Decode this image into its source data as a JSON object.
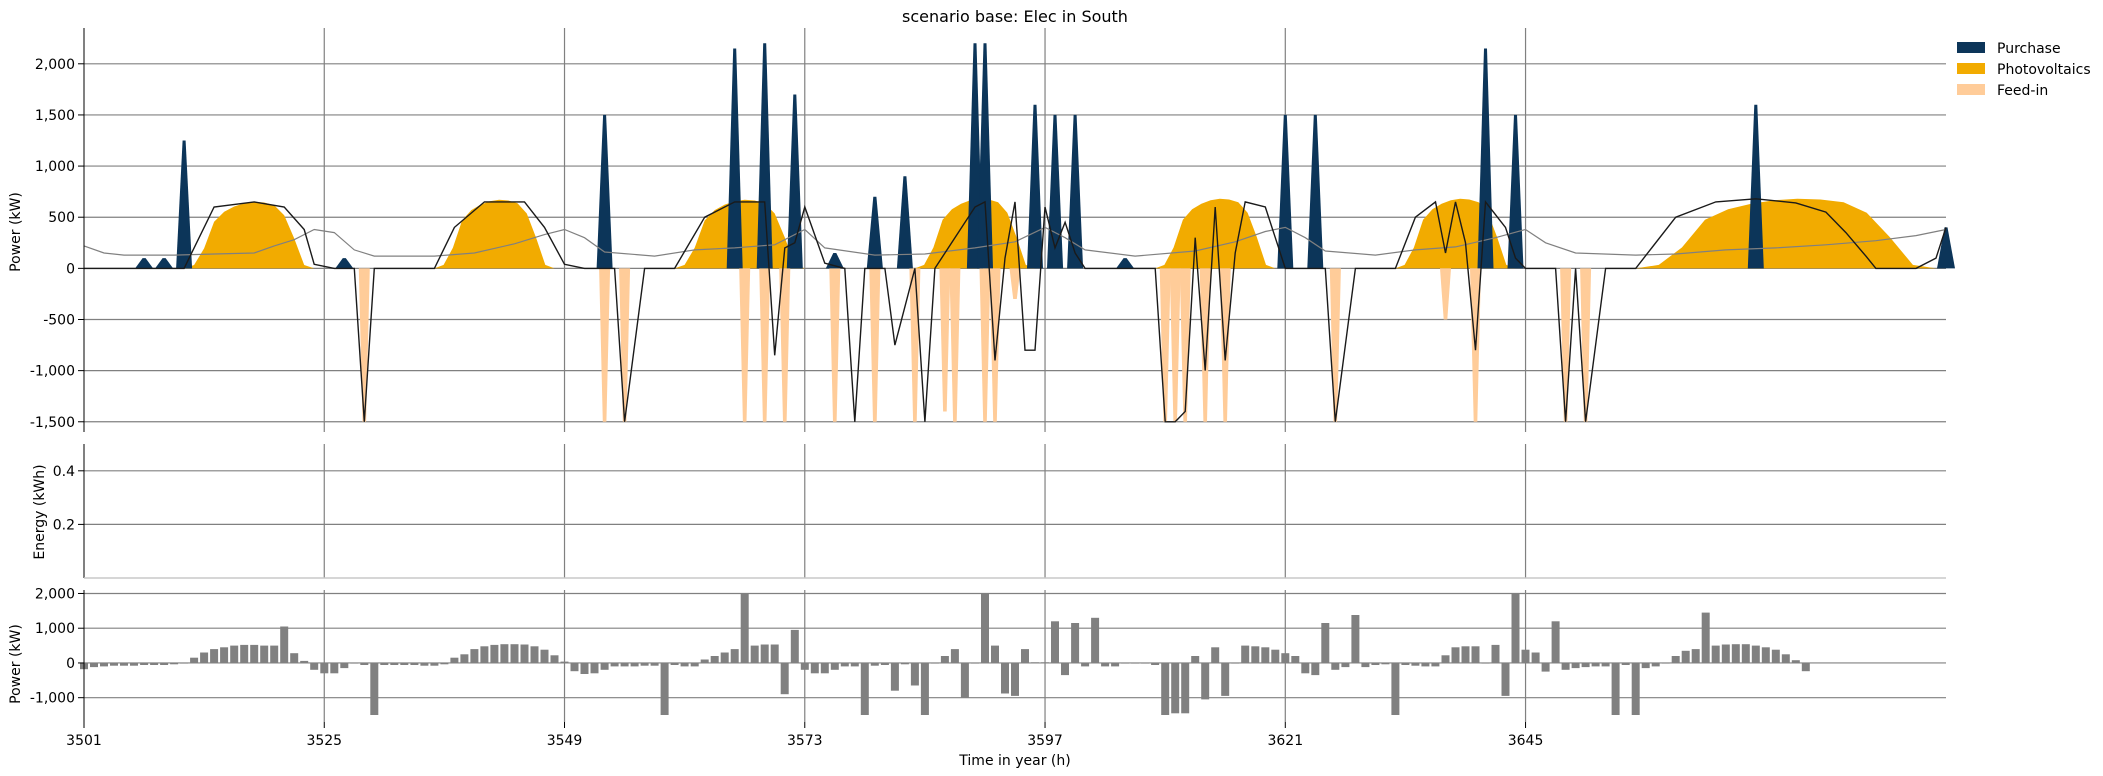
{
  "chart_data": [
    {
      "type": "area",
      "title": "scenario base: Elec in South",
      "xlabel": "",
      "ylabel": "Power (kW)",
      "ylim": [
        -1600,
        2350
      ],
      "xlim": [
        3501,
        3687
      ],
      "x_ticks": [
        3501,
        3525,
        3549,
        3573,
        3597,
        3621,
        3645
      ],
      "y_ticks": [
        -1500,
        -1000,
        -500,
        0,
        500,
        1000,
        1500,
        2000
      ],
      "y_tick_labels": [
        "-1,500",
        "-1,000",
        "-500",
        "0",
        "500",
        "1,000",
        "1,500",
        "2,000"
      ],
      "grid": true,
      "legend_position": "top-right",
      "legend": [
        {
          "name": "Purchase",
          "color": "#0c3559"
        },
        {
          "name": "Photovoltaics",
          "color": "#f2ab00"
        },
        {
          "name": "Feed-in",
          "color": "#ffcc99"
        }
      ],
      "pv_days": [
        {
          "start": 3511,
          "end": 3524,
          "peak": 650
        },
        {
          "start": 3536,
          "end": 3548,
          "peak": 670
        },
        {
          "start": 3560,
          "end": 3573,
          "peak": 670
        },
        {
          "start": 3584,
          "end": 3596,
          "peak": 680
        },
        {
          "start": 3608,
          "end": 3620,
          "peak": 680
        },
        {
          "start": 3632,
          "end": 3644,
          "peak": 680
        },
        {
          "start": 3656,
          "end": 3686,
          "peak": 680
        }
      ],
      "pv_profile": [
        0,
        0.05,
        0.3,
        0.7,
        0.85,
        0.93,
        0.98,
        1,
        0.99,
        0.95,
        0.8,
        0.45,
        0.05,
        0
      ],
      "purchase_spikes": [
        {
          "x": 3511,
          "y": 1250
        },
        {
          "x": 3553,
          "y": 1500
        },
        {
          "x": 3566,
          "y": 2150
        },
        {
          "x": 3569,
          "y": 2200
        },
        {
          "x": 3572,
          "y": 1700
        },
        {
          "x": 3580,
          "y": 700
        },
        {
          "x": 3583,
          "y": 900
        },
        {
          "x": 3590,
          "y": 2200
        },
        {
          "x": 3591,
          "y": 2200
        },
        {
          "x": 3596,
          "y": 1600
        },
        {
          "x": 3598,
          "y": 1500
        },
        {
          "x": 3600,
          "y": 1500
        },
        {
          "x": 3621,
          "y": 1500
        },
        {
          "x": 3624,
          "y": 1500
        },
        {
          "x": 3641,
          "y": 2150
        },
        {
          "x": 3644,
          "y": 1500
        },
        {
          "x": 3668,
          "y": 1600
        }
      ],
      "small_purchase": [
        {
          "x": 3507,
          "y": 100
        },
        {
          "x": 3509,
          "y": 100
        },
        {
          "x": 3527,
          "y": 100
        },
        {
          "x": 3576,
          "y": 150
        },
        {
          "x": 3605,
          "y": 100
        },
        {
          "x": 3687,
          "y": 400
        }
      ],
      "feedin_spikes": [
        {
          "x": 3529,
          "y": -1500
        },
        {
          "x": 3553,
          "y": -1500
        },
        {
          "x": 3555,
          "y": -1500
        },
        {
          "x": 3567,
          "y": -1500
        },
        {
          "x": 3569,
          "y": -1500
        },
        {
          "x": 3571,
          "y": -1500
        },
        {
          "x": 3576,
          "y": -1500
        },
        {
          "x": 3580,
          "y": -1500
        },
        {
          "x": 3584,
          "y": -1500
        },
        {
          "x": 3587,
          "y": -1400
        },
        {
          "x": 3588,
          "y": -1500
        },
        {
          "x": 3591,
          "y": -1500
        },
        {
          "x": 3592,
          "y": -1500
        },
        {
          "x": 3594,
          "y": -300
        },
        {
          "x": 3609,
          "y": -1500
        },
        {
          "x": 3610,
          "y": -1500
        },
        {
          "x": 3611,
          "y": -1500
        },
        {
          "x": 3613,
          "y": -1500
        },
        {
          "x": 3615,
          "y": -1500
        },
        {
          "x": 3626,
          "y": -1500
        },
        {
          "x": 3637,
          "y": -500
        },
        {
          "x": 3640,
          "y": -1500
        },
        {
          "x": 3649,
          "y": -1500
        },
        {
          "x": 3651,
          "y": -1500
        }
      ],
      "demand_line": [
        [
          3501,
          220
        ],
        [
          3503,
          150
        ],
        [
          3505,
          130
        ],
        [
          3510,
          130
        ],
        [
          3514,
          140
        ],
        [
          3518,
          150
        ],
        [
          3520,
          220
        ],
        [
          3522,
          280
        ],
        [
          3524,
          380
        ],
        [
          3526,
          350
        ],
        [
          3528,
          180
        ],
        [
          3530,
          120
        ],
        [
          3536,
          120
        ],
        [
          3540,
          150
        ],
        [
          3544,
          240
        ],
        [
          3547,
          330
        ],
        [
          3549,
          380
        ],
        [
          3551,
          300
        ],
        [
          3553,
          160
        ],
        [
          3558,
          120
        ],
        [
          3562,
          180
        ],
        [
          3566,
          200
        ],
        [
          3570,
          230
        ],
        [
          3573,
          380
        ],
        [
          3575,
          200
        ],
        [
          3580,
          130
        ],
        [
          3585,
          140
        ],
        [
          3590,
          200
        ],
        [
          3594,
          260
        ],
        [
          3597,
          400
        ],
        [
          3599,
          300
        ],
        [
          3601,
          180
        ],
        [
          3606,
          120
        ],
        [
          3612,
          170
        ],
        [
          3616,
          260
        ],
        [
          3619,
          360
        ],
        [
          3621,
          400
        ],
        [
          3623,
          300
        ],
        [
          3625,
          170
        ],
        [
          3630,
          130
        ],
        [
          3634,
          180
        ],
        [
          3638,
          210
        ],
        [
          3642,
          300
        ],
        [
          3645,
          380
        ],
        [
          3647,
          250
        ],
        [
          3650,
          150
        ],
        [
          3656,
          130
        ],
        [
          3660,
          140
        ],
        [
          3665,
          180
        ],
        [
          3670,
          200
        ],
        [
          3675,
          230
        ],
        [
          3680,
          270
        ],
        [
          3684,
          320
        ],
        [
          3687,
          380
        ]
      ],
      "net_line": [
        [
          3501,
          0
        ],
        [
          3511,
          0
        ],
        [
          3514,
          600
        ],
        [
          3518,
          650
        ],
        [
          3521,
          600
        ],
        [
          3523,
          380
        ],
        [
          3524,
          40
        ],
        [
          3526,
          0
        ],
        [
          3528,
          0
        ],
        [
          3529,
          -1500
        ],
        [
          3530,
          0
        ],
        [
          3536,
          0
        ],
        [
          3538,
          400
        ],
        [
          3541,
          650
        ],
        [
          3545,
          650
        ],
        [
          3547,
          400
        ],
        [
          3549,
          40
        ],
        [
          3551,
          0
        ],
        [
          3554,
          0
        ],
        [
          3555,
          -1500
        ],
        [
          3557,
          0
        ],
        [
          3560,
          0
        ],
        [
          3563,
          500
        ],
        [
          3566,
          650
        ],
        [
          3569,
          650
        ],
        [
          3570,
          -850
        ],
        [
          3571,
          200
        ],
        [
          3572,
          250
        ],
        [
          3573,
          600
        ],
        [
          3575,
          50
        ],
        [
          3577,
          0
        ],
        [
          3578,
          -1500
        ],
        [
          3579,
          0
        ],
        [
          3581,
          0
        ],
        [
          3582,
          -750
        ],
        [
          3584,
          0
        ],
        [
          3585,
          -1500
        ],
        [
          3586,
          0
        ],
        [
          3590,
          600
        ],
        [
          3591,
          650
        ],
        [
          3592,
          -900
        ],
        [
          3593,
          100
        ],
        [
          3594,
          650
        ],
        [
          3595,
          -800
        ],
        [
          3596,
          -800
        ],
        [
          3597,
          600
        ],
        [
          3598,
          200
        ],
        [
          3599,
          450
        ],
        [
          3600,
          150
        ],
        [
          3601,
          0
        ],
        [
          3608,
          0
        ],
        [
          3609,
          -1500
        ],
        [
          3610,
          -1500
        ],
        [
          3611,
          -1400
        ],
        [
          3612,
          300
        ],
        [
          3613,
          -1000
        ],
        [
          3614,
          600
        ],
        [
          3615,
          -900
        ],
        [
          3616,
          150
        ],
        [
          3617,
          650
        ],
        [
          3619,
          600
        ],
        [
          3620,
          300
        ],
        [
          3621,
          0
        ],
        [
          3625,
          0
        ],
        [
          3626,
          -1500
        ],
        [
          3628,
          0
        ],
        [
          3632,
          0
        ],
        [
          3634,
          500
        ],
        [
          3636,
          650
        ],
        [
          3637,
          150
        ],
        [
          3638,
          650
        ],
        [
          3639,
          250
        ],
        [
          3640,
          -800
        ],
        [
          3641,
          650
        ],
        [
          3643,
          400
        ],
        [
          3644,
          100
        ],
        [
          3645,
          0
        ],
        [
          3648,
          0
        ],
        [
          3649,
          -1500
        ],
        [
          3650,
          0
        ],
        [
          3651,
          -1500
        ],
        [
          3653,
          0
        ],
        [
          3656,
          0
        ],
        [
          3660,
          500
        ],
        [
          3664,
          650
        ],
        [
          3668,
          680
        ],
        [
          3672,
          640
        ],
        [
          3675,
          550
        ],
        [
          3677,
          350
        ],
        [
          3679,
          120
        ],
        [
          3680,
          0
        ],
        [
          3684,
          0
        ],
        [
          3686,
          100
        ],
        [
          3687,
          400
        ]
      ]
    },
    {
      "type": "line",
      "title": "",
      "xlabel": "",
      "ylabel": "Energy (kWh)",
      "ylim": [
        0,
        0.5
      ],
      "y_ticks": [
        0.2,
        0.4
      ],
      "y_tick_labels": [
        "0.2",
        "0.4"
      ],
      "grid": true
    },
    {
      "type": "bar",
      "title": "",
      "xlabel": "Time in year (h)",
      "ylabel": "Power (kW)",
      "ylim": [
        -1700,
        2100
      ],
      "x_ticks": [
        3501,
        3525,
        3549,
        3573,
        3597,
        3621,
        3645
      ],
      "x_tick_labels": [
        "3501",
        "3525",
        "3549",
        "3573",
        "3597",
        "3621",
        "3645"
      ],
      "y_ticks": [
        -1000,
        0,
        1000,
        2000
      ],
      "y_tick_labels": [
        "-1,000",
        "0",
        "1,000",
        "2,000"
      ],
      "grid": true,
      "bar_color": "#808080",
      "x_start": 3501,
      "values": [
        -180,
        -120,
        -100,
        -80,
        -80,
        -80,
        -60,
        -60,
        -60,
        -40,
        -20,
        150,
        300,
        400,
        450,
        500,
        520,
        520,
        500,
        500,
        1050,
        280,
        60,
        -200,
        -300,
        -300,
        -150,
        -20,
        -60,
        -1500,
        -60,
        -60,
        -60,
        -60,
        -80,
        -80,
        -40,
        150,
        250,
        400,
        480,
        520,
        540,
        540,
        530,
        480,
        380,
        220,
        40,
        -240,
        -320,
        -300,
        -200,
        -100,
        -100,
        -100,
        -80,
        -80,
        -1500,
        -60,
        -100,
        -100,
        100,
        200,
        300,
        400,
        2000,
        500,
        530,
        530,
        -900,
        950,
        -200,
        -300,
        -300,
        -200,
        -100,
        -100,
        -1500,
        -80,
        -60,
        -800,
        -40,
        -650,
        -1500,
        -20,
        200,
        400,
        -1000,
        -20,
        2000,
        500,
        -880,
        -950,
        400,
        20,
        20,
        1200,
        -350,
        1150,
        -100,
        1300,
        -100,
        -100,
        -20,
        -20,
        -20,
        -60,
        -1500,
        -1450,
        -1450,
        200,
        -1050,
        450,
        -950,
        -20,
        500,
        480,
        450,
        380,
        280,
        200,
        -300,
        -350,
        1150,
        -200,
        -120,
        1380,
        -120,
        -60,
        -40,
        -1500,
        -60,
        -80,
        -100,
        -100,
        220,
        450,
        480,
        480,
        -20,
        520,
        -950,
        2000,
        380,
        300,
        -250,
        1200,
        -200,
        -150,
        -120,
        -100,
        -100,
        -1500,
        -60,
        -1500,
        -150,
        -100,
        -20,
        200,
        350,
        400,
        1450,
        500,
        530,
        540,
        540,
        500,
        450,
        380,
        250,
        80,
        -240
      ]
    }
  ]
}
